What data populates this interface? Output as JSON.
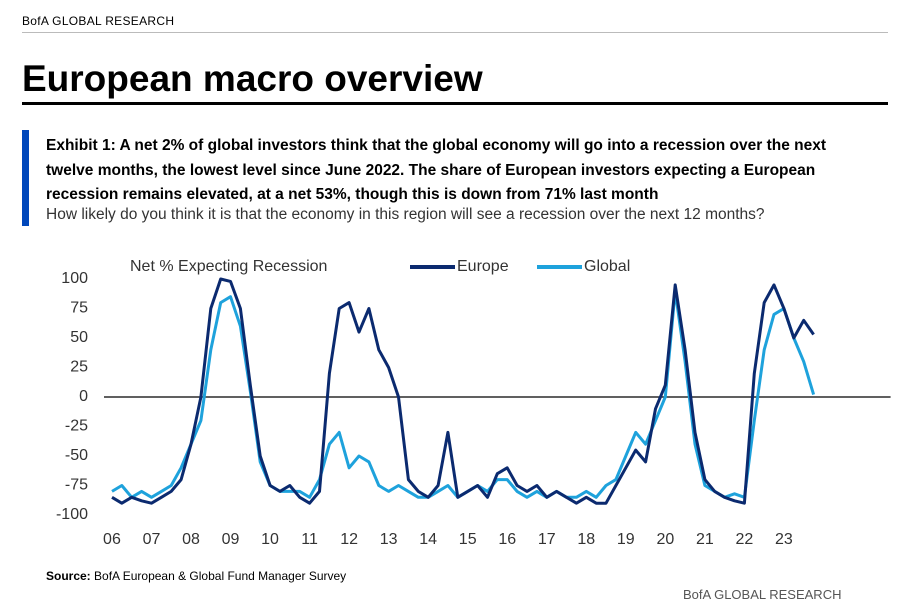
{
  "header": "BofA GLOBAL RESEARCH",
  "title": "European macro overview",
  "exhibit": {
    "title": "Exhibit 1: A net 2% of global investors think that the global economy will go into a recession over the next twelve months, the lowest level since June 2022. The share of European investors expecting a European recession remains elevated, at a net 53%, though this is down from 71% last month",
    "subtitle": "How likely do you think it is that the economy in this region will see a recession over the next 12 months?"
  },
  "chart_data": {
    "type": "line",
    "y_label": "Net % Expecting Recession",
    "x": [
      2006,
      2006.25,
      2006.5,
      2006.75,
      2007,
      2007.25,
      2007.5,
      2007.75,
      2008,
      2008.25,
      2008.5,
      2008.75,
      2009,
      2009.25,
      2009.5,
      2009.75,
      2010,
      2010.25,
      2010.5,
      2010.75,
      2011,
      2011.25,
      2011.5,
      2011.75,
      2012,
      2012.25,
      2012.5,
      2012.75,
      2013,
      2013.25,
      2013.5,
      2013.75,
      2014,
      2014.25,
      2014.5,
      2014.75,
      2015,
      2015.25,
      2015.5,
      2015.75,
      2016,
      2016.25,
      2016.5,
      2016.75,
      2017,
      2017.25,
      2017.5,
      2017.75,
      2018,
      2018.25,
      2018.5,
      2018.75,
      2019,
      2019.25,
      2019.5,
      2019.75,
      2020,
      2020.25,
      2020.5,
      2020.75,
      2021,
      2021.25,
      2021.5,
      2021.75,
      2022,
      2022.25,
      2022.5,
      2022.75,
      2023,
      2023.25,
      2023.5,
      2023.75
    ],
    "series": [
      {
        "name": "Europe",
        "color": "#0b2a6f",
        "values": [
          -85,
          -90,
          -85,
          -88,
          -90,
          -85,
          -80,
          -70,
          -40,
          0,
          75,
          100,
          98,
          75,
          10,
          -50,
          -75,
          -80,
          -75,
          -85,
          -90,
          -80,
          20,
          75,
          80,
          55,
          75,
          40,
          25,
          0,
          -70,
          -80,
          -85,
          -75,
          -30,
          -85,
          -80,
          -75,
          -85,
          -65,
          -60,
          -75,
          -80,
          -75,
          -85,
          -80,
          -85,
          -90,
          -85,
          -90,
          -90,
          -75,
          -60,
          -45,
          -55,
          -10,
          10,
          95,
          40,
          -30,
          -70,
          -80,
          -85,
          -88,
          -90,
          20,
          80,
          95,
          75,
          50,
          65,
          53
        ]
      },
      {
        "name": "Global",
        "color": "#1ea2dc",
        "values": [
          -80,
          -75,
          -85,
          -80,
          -85,
          -80,
          -75,
          -60,
          -40,
          -20,
          40,
          80,
          85,
          60,
          5,
          -55,
          -75,
          -80,
          -80,
          -80,
          -85,
          -70,
          -40,
          -30,
          -60,
          -50,
          -55,
          -75,
          -80,
          -75,
          -80,
          -85,
          -85,
          -80,
          -75,
          -85,
          -80,
          -75,
          -80,
          -70,
          -70,
          -80,
          -85,
          -80,
          -85,
          -80,
          -85,
          -85,
          -80,
          -85,
          -75,
          -70,
          -50,
          -30,
          -40,
          -20,
          0,
          90,
          30,
          -40,
          -75,
          -80,
          -85,
          -82,
          -85,
          -20,
          40,
          70,
          75,
          50,
          30,
          2
        ]
      }
    ],
    "xlim": [
      2005.9,
      2025.8
    ],
    "ylim": [
      -100,
      100
    ],
    "xticks": [
      {
        "value": 2006,
        "label": "06"
      },
      {
        "value": 2007,
        "label": "07"
      },
      {
        "value": 2008,
        "label": "08"
      },
      {
        "value": 2009,
        "label": "09"
      },
      {
        "value": 2010,
        "label": "10"
      },
      {
        "value": 2011,
        "label": "11"
      },
      {
        "value": 2012,
        "label": "12"
      },
      {
        "value": 2013,
        "label": "13"
      },
      {
        "value": 2014,
        "label": "14"
      },
      {
        "value": 2015,
        "label": "15"
      },
      {
        "value": 2016,
        "label": "16"
      },
      {
        "value": 2017,
        "label": "17"
      },
      {
        "value": 2018,
        "label": "18"
      },
      {
        "value": 2019,
        "label": "19"
      },
      {
        "value": 2020,
        "label": "20"
      },
      {
        "value": 2021,
        "label": "21"
      },
      {
        "value": 2022,
        "label": "22"
      },
      {
        "value": 2023,
        "label": "23"
      }
    ],
    "yticks": [
      100,
      75,
      50,
      25,
      0,
      -25,
      -50,
      -75,
      -100
    ],
    "grid": false
  },
  "source": {
    "label": "Source:",
    "text": "BofA European & Global Fund Manager Survey"
  },
  "footer": "BofA GLOBAL RESEARCH"
}
